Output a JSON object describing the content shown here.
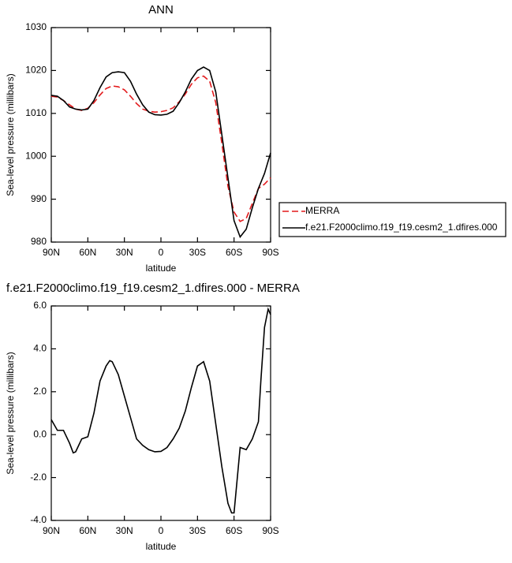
{
  "chart_data": [
    {
      "type": "line",
      "title": "ANN",
      "x_label": "latitude",
      "y_label": "Sea-level pressure (millibars)",
      "x": [
        90,
        85,
        80,
        75,
        70,
        65,
        60,
        55,
        50,
        45,
        40,
        35,
        30,
        25,
        20,
        15,
        10,
        5,
        0,
        -5,
        -10,
        -15,
        -20,
        -25,
        -30,
        -35,
        -40,
        -45,
        -50,
        -55,
        -60,
        -65,
        -70,
        -75,
        -80,
        -85,
        -90
      ],
      "series": [
        {
          "name": "MERRA",
          "color": "#e31a1c",
          "linestyle": "dashed",
          "values": [
            1014,
            1013.8,
            1013,
            1012,
            1011,
            1010.7,
            1011.2,
            1012.5,
            1014.3,
            1015.8,
            1016.4,
            1016.2,
            1015.5,
            1014,
            1012.3,
            1011,
            1010.5,
            1010.3,
            1010.4,
            1010.7,
            1011.3,
            1012.7,
            1014.5,
            1016.8,
            1018.3,
            1018.7,
            1017.5,
            1012.5,
            1003,
            993,
            987,
            984.8,
            985.5,
            989,
            992.5,
            993.5,
            995
          ]
        },
        {
          "name": "f.e21.F2000climo.f19_f19.cesm2_1.dfires.000",
          "color": "#000000",
          "linestyle": "solid",
          "values": [
            1014.2,
            1014,
            1013,
            1011.5,
            1011,
            1010.8,
            1011,
            1013,
            1016,
            1018.5,
            1019.5,
            1019.7,
            1019.5,
            1017.5,
            1014.5,
            1012,
            1010.3,
            1009.7,
            1009.6,
            1009.8,
            1010.5,
            1012.5,
            1015,
            1018,
            1020,
            1020.8,
            1020,
            1015,
            1005,
            995,
            985,
            981.2,
            983,
            988,
            992.5,
            996,
            1000.8
          ]
        }
      ],
      "xlim": [
        90,
        -90
      ],
      "xticks": [
        {
          "value": 90,
          "label": "90N"
        },
        {
          "value": 60,
          "label": "60N"
        },
        {
          "value": 30,
          "label": "30N"
        },
        0,
        {
          "value": -30,
          "label": "30S"
        },
        {
          "value": -60,
          "label": "60S"
        },
        {
          "value": -90,
          "label": "90S"
        }
      ],
      "ylim": [
        980,
        1030
      ],
      "yticks": [
        980,
        990,
        1000,
        1010,
        1020,
        1030
      ],
      "legend": "right"
    },
    {
      "type": "line",
      "title": "f.e21.F2000climo.f19_f19.cesm2_1.dfires.000 - MERRA",
      "x_label": "latitude",
      "y_label": "Sea-level pressure (millibars)",
      "x": [
        90,
        85,
        80,
        75,
        72,
        70,
        65,
        60,
        55,
        50,
        45,
        42,
        40,
        35,
        30,
        25,
        20,
        15,
        10,
        5,
        0,
        -5,
        -10,
        -15,
        -20,
        -25,
        -30,
        -35,
        -40,
        -45,
        -50,
        -55,
        -58,
        -60,
        -65,
        -70,
        -75,
        -80,
        -82,
        -85,
        -88,
        -90
      ],
      "values": [
        0.7,
        0.2,
        0.2,
        -0.4,
        -0.85,
        -0.8,
        -0.2,
        -0.1,
        1.0,
        2.5,
        3.2,
        3.45,
        3.4,
        2.8,
        1.8,
        0.8,
        -0.2,
        -0.5,
        -0.7,
        -0.8,
        -0.78,
        -0.6,
        -0.2,
        0.3,
        1.1,
        2.2,
        3.2,
        3.4,
        2.5,
        0.5,
        -1.5,
        -3.2,
        -3.65,
        -3.65,
        -0.6,
        -0.7,
        -0.2,
        0.6,
        2.5,
        5,
        5.85,
        5.6
      ],
      "color": "#000000",
      "xlim": [
        90,
        -90
      ],
      "xticks": [
        {
          "value": 90,
          "label": "90N"
        },
        {
          "value": 60,
          "label": "60N"
        },
        {
          "value": 30,
          "label": "30N"
        },
        0,
        {
          "value": -30,
          "label": "30S"
        },
        {
          "value": -60,
          "label": "60S"
        },
        {
          "value": -90,
          "label": "90S"
        }
      ],
      "ylim": [
        -4,
        6
      ],
      "yticks": [
        {
          "value": -4,
          "label": "-4.0"
        },
        {
          "value": -2,
          "label": "-2.0"
        },
        {
          "value": 0,
          "label": "0.0"
        },
        {
          "value": 2,
          "label": "2.0"
        },
        {
          "value": 4,
          "label": "4.0"
        },
        {
          "value": 6,
          "label": "6.0"
        }
      ]
    }
  ]
}
